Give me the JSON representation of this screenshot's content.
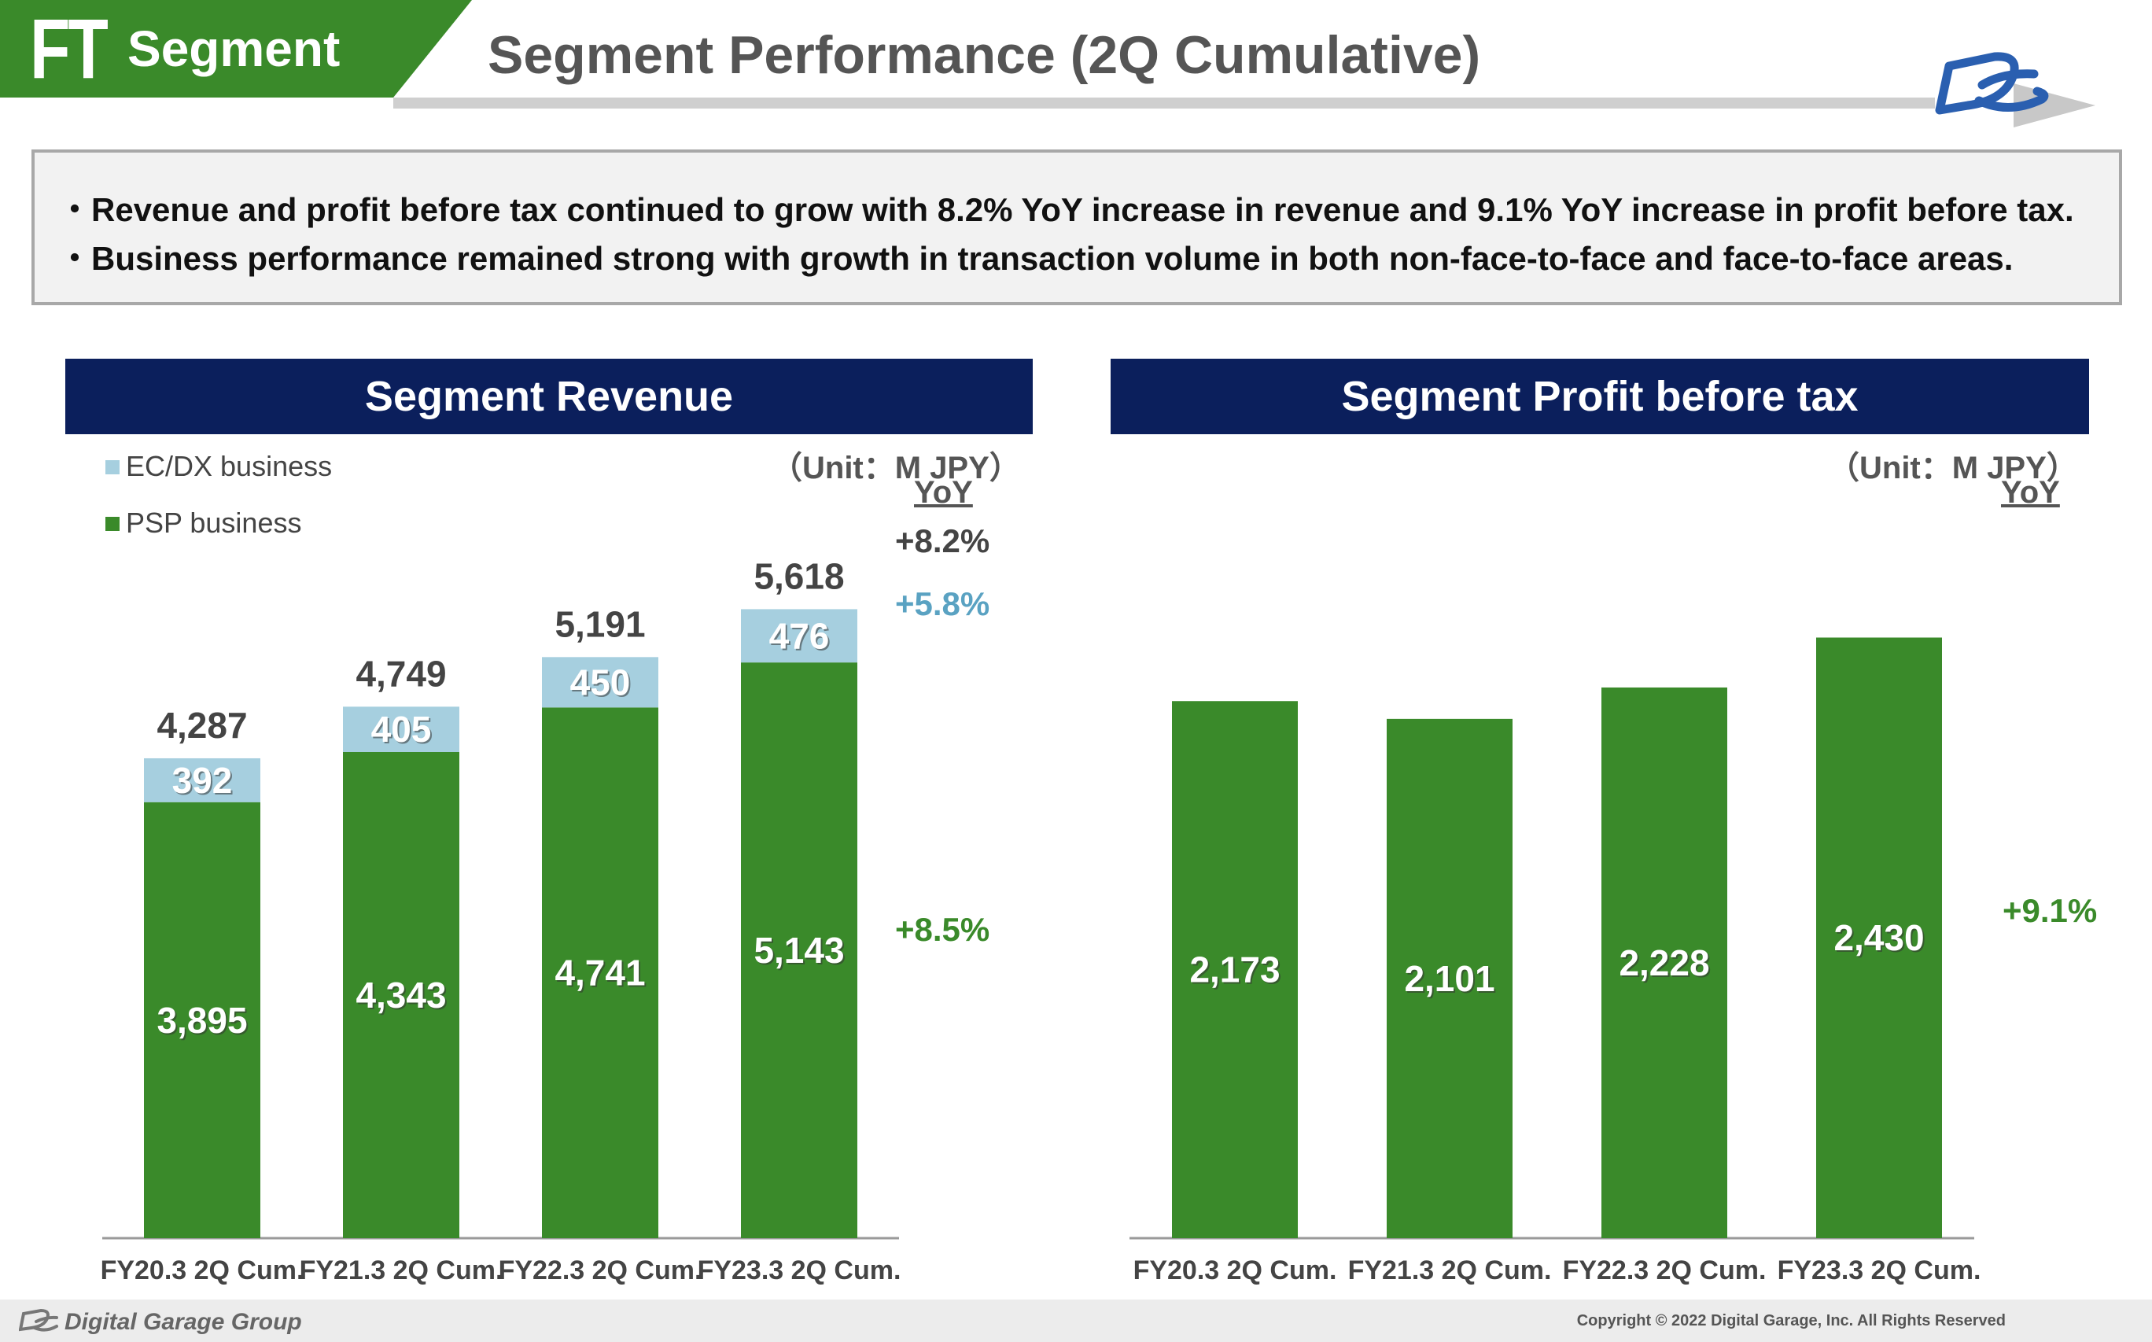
{
  "header": {
    "tab_code": "FT",
    "tab_label": "Segment",
    "title": "Segment Performance (2Q Cumulative)"
  },
  "summary": {
    "bullet_symbol": "・",
    "bullets": [
      "Revenue and profit before tax continued to grow with 8.2% YoY increase in revenue and 9.1% YoY increase in profit before tax.",
      "Business performance remained strong with growth in transaction volume in both non-face-to-face and face-to-face areas."
    ]
  },
  "colors": {
    "psp_green": "#3a8a2a",
    "ecdx_blue": "#a6cfdf",
    "navy": "#0b1f5c",
    "yoy_blue": "#5aa2c2"
  },
  "revenue_panel": {
    "title": "Segment Revenue",
    "unit": "（Unit：M JPY）",
    "yoy_header": "YoY",
    "legend": [
      "EC/DX business",
      "PSP business"
    ],
    "yoy": {
      "total": "+8.2%",
      "ecdx": "+5.8%",
      "psp": "+8.5%"
    }
  },
  "profit_panel": {
    "title": "Segment Profit before tax",
    "unit": "（Unit：M JPY）",
    "yoy_header": "YoY",
    "yoy": {
      "total": "+9.1%"
    }
  },
  "chart_data": [
    {
      "type": "bar",
      "stacked": true,
      "title": "Segment Revenue",
      "categories": [
        "FY20.3 2Q Cum.",
        "FY21.3 2Q Cum.",
        "FY22.3 2Q Cum.",
        "FY23.3 2Q Cum."
      ],
      "series": [
        {
          "name": "PSP business",
          "values": [
            3895,
            4343,
            4741,
            5143
          ]
        },
        {
          "name": "EC/DX business",
          "values": [
            392,
            405,
            450,
            476
          ]
        }
      ],
      "totals": [
        4287,
        4749,
        5191,
        5618
      ],
      "value_labels": {
        "psp": [
          "3,895",
          "4,343",
          "4,741",
          "5,143"
        ],
        "ecdx": [
          "392",
          "405",
          "450",
          "476"
        ],
        "totals": [
          "4,287",
          "4,749",
          "5,191",
          "5,618"
        ]
      },
      "legend": "top-left",
      "grid": false
    },
    {
      "type": "bar",
      "title": "Segment Profit before tax",
      "categories": [
        "FY20.3 2Q Cum.",
        "FY21.3 2Q Cum.",
        "FY22.3 2Q Cum.",
        "FY23.3 2Q Cum."
      ],
      "values": [
        2173,
        2101,
        2228,
        2430
      ],
      "value_labels": [
        "2,173",
        "2,101",
        "2,228",
        "2,430"
      ],
      "grid": false
    }
  ],
  "footer": {
    "brand": "Digital Garage Group",
    "copyright": "Copyright © 2022 Digital Garage, Inc. All Rights Reserved"
  }
}
